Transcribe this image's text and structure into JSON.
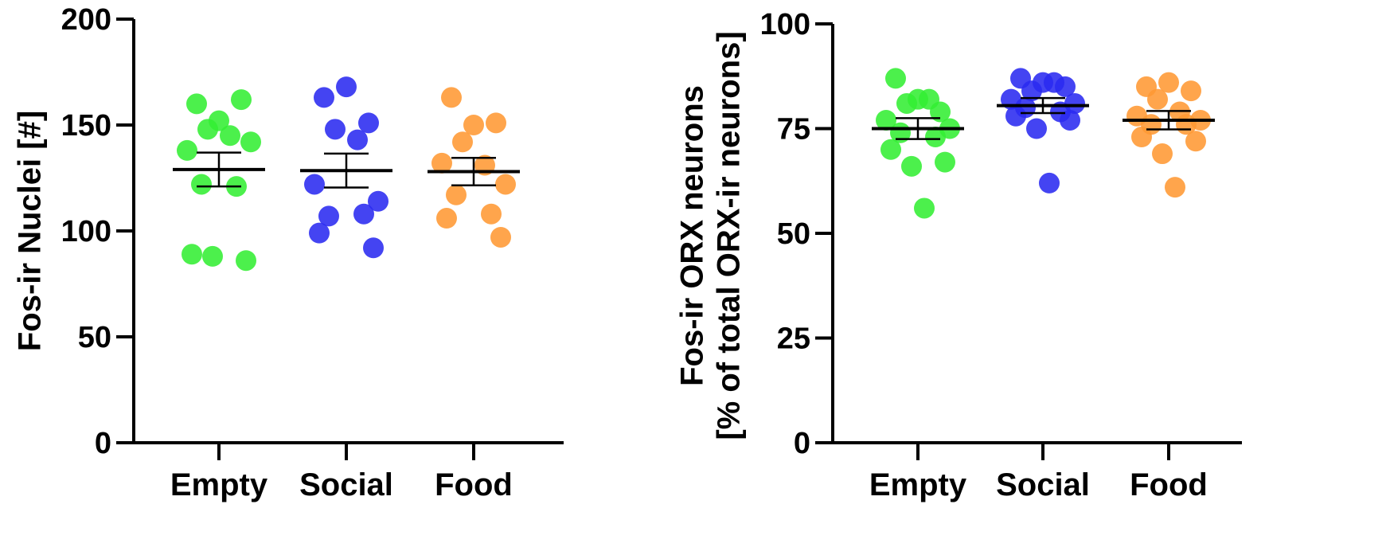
{
  "chart_data": [
    {
      "type": "scatter",
      "categories": [
        "Empty",
        "Social",
        "Food"
      ],
      "ylabel": [
        "Fos-ir Nuclei [#]"
      ],
      "ylim": [
        0,
        200
      ],
      "yticks": [
        0,
        50,
        100,
        150,
        200
      ],
      "colors": [
        "#33ee33",
        "#2a2af0",
        "#ff9933"
      ],
      "series": [
        {
          "values": [
            160,
            152,
            162,
            148,
            145,
            138,
            142,
            122,
            121,
            89,
            86,
            88
          ],
          "mean": 129,
          "sem": 8
        },
        {
          "values": [
            163,
            168,
            151,
            148,
            143,
            122,
            114,
            107,
            108,
            99,
            92
          ],
          "mean": 128.5,
          "sem": 8
        },
        {
          "values": [
            163,
            150,
            151,
            142,
            131,
            132,
            122,
            117,
            108,
            106,
            97
          ],
          "mean": 128,
          "sem": 6.5
        }
      ]
    },
    {
      "type": "scatter",
      "categories": [
        "Empty",
        "Social",
        "Food"
      ],
      "ylabel": [
        "Fos-ir ORX neurons",
        "[% of total ORX-ir neurons]"
      ],
      "ylim": [
        0,
        100
      ],
      "yticks": [
        0,
        25,
        50,
        75,
        100
      ],
      "colors": [
        "#33ee33",
        "#2a2af0",
        "#ff9933"
      ],
      "series": [
        {
          "values": [
            87,
            82,
            79,
            81,
            82,
            77,
            75,
            74,
            73,
            70,
            67,
            66,
            56
          ],
          "mean": 75,
          "sem": 2.5
        },
        {
          "values": [
            87,
            86,
            85,
            84,
            86,
            82,
            81,
            80,
            79,
            78,
            77,
            75,
            62
          ],
          "mean": 80.5,
          "sem": 1.8
        },
        {
          "values": [
            85,
            86,
            84,
            82,
            79,
            78,
            77,
            76,
            76,
            73,
            72,
            69,
            61
          ],
          "mean": 77,
          "sem": 2.2
        }
      ]
    }
  ]
}
